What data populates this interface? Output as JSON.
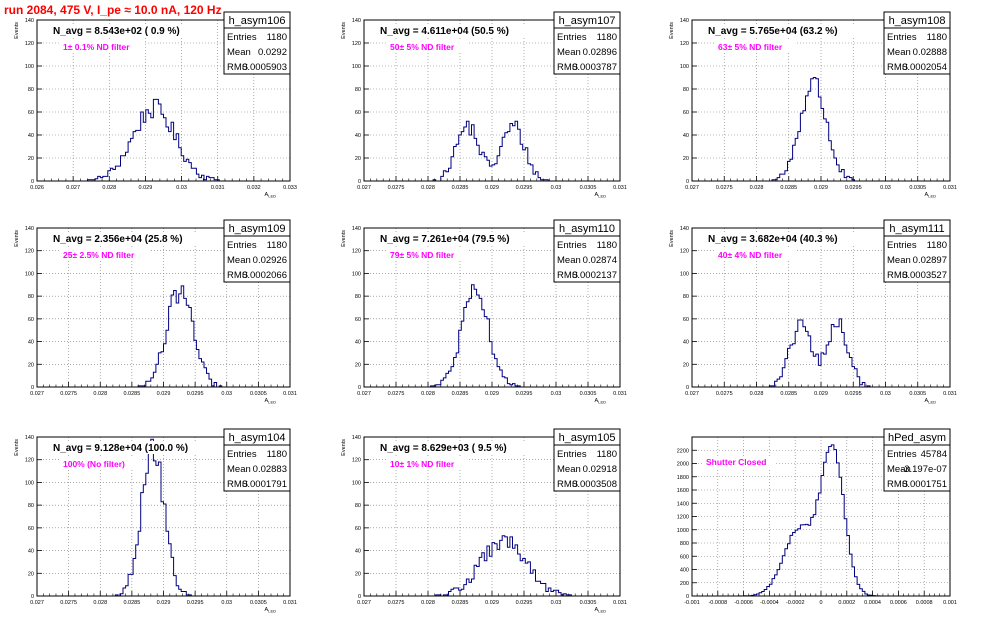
{
  "header": {
    "title": "run 2084,   475 V, I_pe ≈ 10.0 nA, 120 Hz",
    "title_color": "#ff0000"
  },
  "style": {
    "hist_color": "#000080",
    "annotation_color": "#ff00ff",
    "grid": "dotted"
  },
  "chart_data": [
    {
      "type": "bar",
      "id": "h_asym106",
      "title": "h_asym106",
      "navg": "N_avg = 8.543e+02 ( 0.9 %)",
      "note": "1± 0.1% ND filter",
      "stats": [
        [
          "Entries",
          "1180"
        ],
        [
          "Mean",
          "0.0292"
        ],
        [
          "RMS",
          "0.0005903"
        ]
      ],
      "ylabel": "Events",
      "xlabel": "A_{LED}",
      "xlim": [
        0.026,
        0.033
      ],
      "ylim": [
        0,
        140
      ],
      "xticks": [
        "0.026",
        "0.027",
        "0.028",
        "0.029",
        "0.03",
        "0.031",
        "0.032",
        "0.033"
      ],
      "yticks": [
        "0",
        "20",
        "40",
        "60",
        "80",
        "100",
        "120",
        "140"
      ],
      "peaks": [
        [
          0.02924,
          0.00059,
          63
        ]
      ]
    },
    {
      "type": "bar",
      "id": "h_asym107",
      "title": "h_asym107",
      "navg": "N_avg = 4.611e+04 (50.5 %)",
      "note": "50± 5% ND filter",
      "stats": [
        [
          "Entries",
          "1180"
        ],
        [
          "Mean",
          "0.02896"
        ],
        [
          "RMS",
          "0.0003787"
        ]
      ],
      "ylabel": "Events",
      "xlabel": "A_{LED}",
      "xlim": [
        0.027,
        0.031
      ],
      "ylim": [
        0,
        140
      ],
      "xticks": [
        "0.027",
        "0.0275",
        "0.028",
        "0.0285",
        "0.029",
        "0.0295",
        "0.03",
        "0.0305",
        "0.031"
      ],
      "yticks": [
        "0",
        "20",
        "40",
        "60",
        "80",
        "100",
        "120",
        "140"
      ],
      "peaks": [
        [
          0.02862,
          0.00018,
          48
        ],
        [
          0.02933,
          0.00018,
          48
        ]
      ]
    },
    {
      "type": "bar",
      "id": "h_asym108",
      "title": "h_asym108",
      "navg": "N_avg = 5.765e+04 (63.2 %)",
      "note": "63± 5% ND filter",
      "stats": [
        [
          "Entries",
          "1180"
        ],
        [
          "Mean",
          "0.02888"
        ],
        [
          "RMS",
          "0.0002054"
        ]
      ],
      "ylabel": "Events",
      "xlabel": "A_{LED}",
      "xlim": [
        0.027,
        0.031
      ],
      "ylim": [
        0,
        140
      ],
      "xticks": [
        "0.027",
        "0.0275",
        "0.028",
        "0.0285",
        "0.029",
        "0.0295",
        "0.03",
        "0.0305",
        "0.031"
      ],
      "yticks": [
        "0",
        "20",
        "40",
        "60",
        "80",
        "100",
        "120",
        "140"
      ],
      "peaks": [
        [
          0.02888,
          0.000205,
          85
        ]
      ]
    },
    {
      "type": "bar",
      "id": "h_asym109",
      "title": "h_asym109",
      "navg": "N_avg = 2.356e+04 (25.8 %)",
      "note": "25± 2.5% ND filter",
      "stats": [
        [
          "Entries",
          "1180"
        ],
        [
          "Mean",
          "0.02926"
        ],
        [
          "RMS",
          "0.0002066"
        ]
      ],
      "ylabel": "Events",
      "xlabel": "A_{LED}",
      "xlim": [
        0.027,
        0.031
      ],
      "ylim": [
        0,
        140
      ],
      "xticks": [
        "0.027",
        "0.0275",
        "0.028",
        "0.0285",
        "0.029",
        "0.0295",
        "0.03",
        "0.0305",
        "0.031"
      ],
      "yticks": [
        "0",
        "20",
        "40",
        "60",
        "80",
        "100",
        "120",
        "140"
      ],
      "peaks": [
        [
          0.02926,
          0.000206,
          85
        ]
      ]
    },
    {
      "type": "bar",
      "id": "h_asym110",
      "title": "h_asym110",
      "navg": "N_avg = 7.261e+04 (79.5 %)",
      "note": "79± 5% ND filter",
      "stats": [
        [
          "Entries",
          "1180"
        ],
        [
          "Mean",
          "0.02874"
        ],
        [
          "RMS",
          "0.0002137"
        ]
      ],
      "ylabel": "Events",
      "xlabel": "A_{LED}",
      "xlim": [
        0.027,
        0.031
      ],
      "ylim": [
        0,
        140
      ],
      "xticks": [
        "0.027",
        "0.0275",
        "0.028",
        "0.0285",
        "0.029",
        "0.0295",
        "0.03",
        "0.0305",
        "0.031"
      ],
      "yticks": [
        "0",
        "20",
        "40",
        "60",
        "80",
        "100",
        "120",
        "140"
      ],
      "peaks": [
        [
          0.02874,
          0.000214,
          82
        ]
      ]
    },
    {
      "type": "bar",
      "id": "h_asym111",
      "title": "h_asym111",
      "navg": "N_avg = 3.682e+04 (40.3 %)",
      "note": "40± 4% ND filter",
      "stats": [
        [
          "Entries",
          "1180"
        ],
        [
          "Mean",
          "0.02897"
        ],
        [
          "RMS",
          "0.0003527"
        ]
      ],
      "ylabel": "Events",
      "xlabel": "A_{LED}",
      "xlim": [
        0.027,
        0.031
      ],
      "ylim": [
        0,
        140
      ],
      "xticks": [
        "0.027",
        "0.0275",
        "0.028",
        "0.0285",
        "0.029",
        "0.0295",
        "0.03",
        "0.0305",
        "0.031"
      ],
      "yticks": [
        "0",
        "20",
        "40",
        "60",
        "80",
        "100",
        "120",
        "140"
      ],
      "peaks": [
        [
          0.02869,
          0.00016,
          56
        ],
        [
          0.02926,
          0.00016,
          56
        ]
      ]
    },
    {
      "type": "bar",
      "id": "h_asym104",
      "title": "h_asym104",
      "navg": "N_avg = 9.128e+04 (100.0 %)",
      "note": "100% (No filter)",
      "stats": [
        [
          "Entries",
          "1180"
        ],
        [
          "Mean",
          "0.02883"
        ],
        [
          "RMS",
          "0.0001791"
        ]
      ],
      "ylabel": "Events",
      "xlabel": "A_{LED}",
      "xlim": [
        0.027,
        0.031
      ],
      "ylim": [
        0,
        140
      ],
      "xticks": [
        "0.027",
        "0.0275",
        "0.028",
        "0.0285",
        "0.029",
        "0.0295",
        "0.03",
        "0.0305",
        "0.031"
      ],
      "yticks": [
        "0",
        "20",
        "40",
        "60",
        "80",
        "100",
        "120",
        "140"
      ],
      "peaks": [
        [
          0.02883,
          0.000179,
          130
        ]
      ]
    },
    {
      "type": "bar",
      "id": "h_asym105",
      "title": "h_asym105",
      "navg": "N_avg = 8.629e+03 ( 9.5 %)",
      "note": "10± 1% ND filter",
      "stats": [
        [
          "Entries",
          "1180"
        ],
        [
          "Mean",
          "0.02918"
        ],
        [
          "RMS",
          "0.0003508"
        ]
      ],
      "ylabel": "Events",
      "xlabel": "A_{LED}",
      "xlim": [
        0.027,
        0.031
      ],
      "ylim": [
        0,
        140
      ],
      "xticks": [
        "0.027",
        "0.0275",
        "0.028",
        "0.0285",
        "0.029",
        "0.0295",
        "0.03",
        "0.0305",
        "0.031"
      ],
      "yticks": [
        "0",
        "20",
        "40",
        "60",
        "80",
        "100",
        "120",
        "140"
      ],
      "peaks": [
        [
          0.02918,
          0.00035,
          48
        ]
      ]
    },
    {
      "type": "bar",
      "id": "hPed_asym",
      "title": "hPed_asym",
      "navg": "",
      "note": "Shutter Closed",
      "stats": [
        [
          "Entries",
          "45784"
        ],
        [
          "Mean",
          "-3.197e-07"
        ],
        [
          "RMS",
          "0.0001751"
        ]
      ],
      "ylabel": "",
      "xlabel": "",
      "xlim": [
        -0.001,
        0.001
      ],
      "ylim": [
        0,
        2400
      ],
      "xticks": [
        "-0.001",
        "-0.0008",
        "-0.0006",
        "-0.0004",
        "-0.0002",
        "0",
        "0.0002",
        "0.0004",
        "0.0006",
        "0.0008",
        "0.001"
      ],
      "yticks": [
        "0",
        "200",
        "400",
        "600",
        "800",
        "1000",
        "1200",
        "1400",
        "1600",
        "1800",
        "2000",
        "2200"
      ],
      "peaks": [
        [
          -0.00017,
          0.00012,
          1000
        ],
        [
          9e-05,
          9e-05,
          2200
        ]
      ]
    }
  ]
}
